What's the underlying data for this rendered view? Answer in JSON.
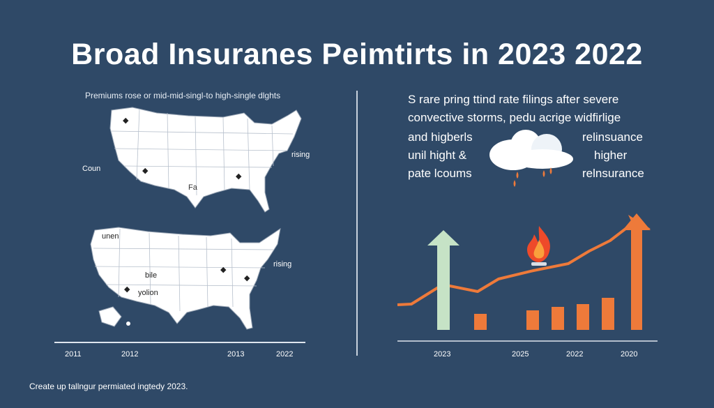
{
  "title": "Broad Insuranes Peimtirts in 2023 2022",
  "left_panel": {
    "subtitle": "Premiums rose or mid-mid-singl-to high-single dlghts",
    "map_top": {
      "label_left": "Coun",
      "label_right": "rising",
      "label_center": "Fa"
    },
    "map_bottom": {
      "label_top": "unen",
      "label_center": "bile",
      "label_lower": "yolion",
      "label_right": "rising"
    },
    "axis_ticks": [
      "2011",
      "2012",
      "2013",
      "2022"
    ]
  },
  "right_panel": {
    "line1": "S rare pring ttind rate filings after severe",
    "line2": "convective storms, pedu acrige widfirlige",
    "left_lines": [
      "and higberls",
      "unil hight &",
      "pate lcoums"
    ],
    "right_lines": [
      "relinsuance",
      "higher",
      "relnsurance"
    ],
    "axis_ticks": [
      "2023",
      "2025",
      "2022",
      "2020"
    ]
  },
  "footer": "Create up tallngur permiated ingtedy 2023.",
  "colors": {
    "background": "#2f4967",
    "orange": "#ee7a3a",
    "green_arrow": "#c6e3c6",
    "map_fill": "#ffffff"
  }
}
